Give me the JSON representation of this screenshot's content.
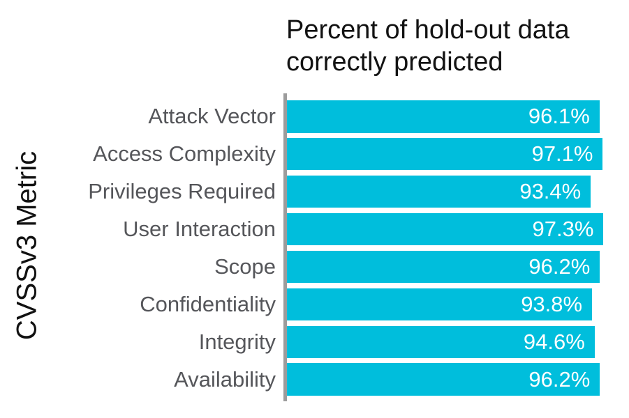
{
  "chart_data": {
    "type": "bar",
    "orientation": "horizontal",
    "title": "Percent of hold-out data correctly predicted",
    "title_lines": [
      "Percent of hold-out data",
      "correctly predicted"
    ],
    "xlabel": "",
    "ylabel": "CVSSv3 Metric",
    "categories": [
      "Attack Vector",
      "Access Complexity",
      "Privileges Required",
      "User Interaction",
      "Scope",
      "Confidentiality",
      "Integrity",
      "Availability"
    ],
    "values": [
      96.1,
      97.1,
      93.4,
      97.3,
      96.2,
      93.8,
      94.6,
      96.2
    ],
    "value_labels": [
      "96.1%",
      "97.1%",
      "93.4%",
      "97.3%",
      "96.2%",
      "93.8%",
      "94.6%",
      "96.2%"
    ],
    "xlim": [
      0,
      100
    ],
    "grid": "off",
    "legend": "none",
    "colors": {
      "bar": "#00BEDC",
      "axis_line": "#9C9C9C",
      "category_label": "#55565A",
      "value_label": "#FFFFFF",
      "title": "#121212"
    }
  }
}
